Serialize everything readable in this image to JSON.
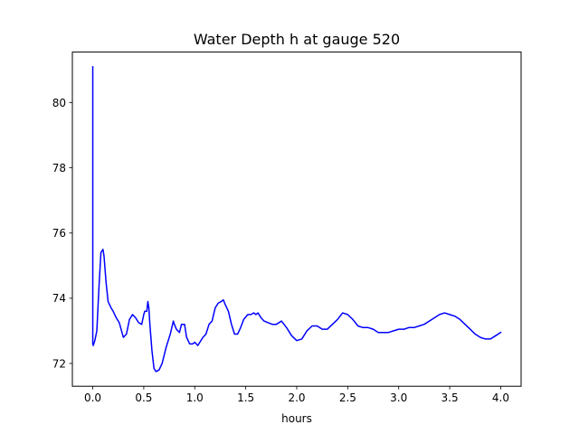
{
  "chart_data": {
    "type": "line",
    "title": "Water Depth h at gauge 520",
    "xlabel": "hours",
    "ylabel": "",
    "xlim": [
      -0.2,
      4.2
    ],
    "ylim": [
      71.3,
      81.55
    ],
    "xticks": [
      0.0,
      0.5,
      1.0,
      1.5,
      2.0,
      2.5,
      3.0,
      3.5,
      4.0
    ],
    "xtick_labels": [
      "0.0",
      "0.5",
      "1.0",
      "1.5",
      "2.0",
      "2.5",
      "3.0",
      "3.5",
      "4.0"
    ],
    "yticks": [
      72,
      74,
      76,
      78,
      80
    ],
    "ytick_labels": [
      "72",
      "74",
      "76",
      "78",
      "80"
    ],
    "grid": false,
    "legend": false,
    "series": [
      {
        "color": "#0000ff",
        "x": [
          0.0,
          0.0,
          0.005,
          0.01,
          0.02,
          0.04,
          0.06,
          0.08,
          0.1,
          0.11,
          0.13,
          0.15,
          0.18,
          0.2,
          0.23,
          0.26,
          0.3,
          0.33,
          0.36,
          0.39,
          0.42,
          0.45,
          0.48,
          0.5,
          0.51,
          0.53,
          0.54,
          0.55,
          0.56,
          0.58,
          0.6,
          0.62,
          0.65,
          0.68,
          0.72,
          0.76,
          0.79,
          0.8,
          0.82,
          0.85,
          0.87,
          0.9,
          0.92,
          0.95,
          0.98,
          1.0,
          1.03,
          1.05,
          1.08,
          1.11,
          1.14,
          1.17,
          1.2,
          1.23,
          1.26,
          1.28,
          1.3,
          1.33,
          1.36,
          1.39,
          1.42,
          1.45,
          1.48,
          1.52,
          1.55,
          1.58,
          1.6,
          1.62,
          1.65,
          1.68,
          1.72,
          1.76,
          1.8,
          1.85,
          1.9,
          1.95,
          2.0,
          2.05,
          2.1,
          2.15,
          2.2,
          2.25,
          2.3,
          2.35,
          2.4,
          2.45,
          2.5,
          2.55,
          2.6,
          2.65,
          2.7,
          2.75,
          2.8,
          2.85,
          2.9,
          2.95,
          3.0,
          3.05,
          3.1,
          3.15,
          3.2,
          3.25,
          3.3,
          3.35,
          3.4,
          3.45,
          3.5,
          3.55,
          3.6,
          3.65,
          3.7,
          3.75,
          3.8,
          3.85,
          3.9,
          3.95,
          4.0
        ],
        "y": [
          81.1,
          72.6,
          72.55,
          72.6,
          72.7,
          73.0,
          74.3,
          75.4,
          75.5,
          75.3,
          74.5,
          73.9,
          73.7,
          73.6,
          73.4,
          73.25,
          72.8,
          72.9,
          73.35,
          73.5,
          73.4,
          73.25,
          73.2,
          73.5,
          73.6,
          73.6,
          73.9,
          73.7,
          73.2,
          72.4,
          71.85,
          71.75,
          71.8,
          72.0,
          72.5,
          72.9,
          73.3,
          73.2,
          73.05,
          72.95,
          73.2,
          73.2,
          72.8,
          72.6,
          72.6,
          72.65,
          72.55,
          72.65,
          72.8,
          72.9,
          73.2,
          73.3,
          73.7,
          73.85,
          73.9,
          73.95,
          73.8,
          73.6,
          73.2,
          72.9,
          72.9,
          73.1,
          73.35,
          73.5,
          73.5,
          73.55,
          73.5,
          73.55,
          73.4,
          73.3,
          73.25,
          73.2,
          73.2,
          73.3,
          73.1,
          72.85,
          72.7,
          72.75,
          73.0,
          73.15,
          73.15,
          73.05,
          73.05,
          73.2,
          73.35,
          73.55,
          73.5,
          73.35,
          73.15,
          73.1,
          73.1,
          73.05,
          72.95,
          72.95,
          72.95,
          73.0,
          73.05,
          73.05,
          73.1,
          73.1,
          73.15,
          73.2,
          73.3,
          73.4,
          73.5,
          73.55,
          73.5,
          73.45,
          73.35,
          73.2,
          73.05,
          72.9,
          72.8,
          72.75,
          72.75,
          72.85,
          72.95
        ]
      }
    ]
  }
}
